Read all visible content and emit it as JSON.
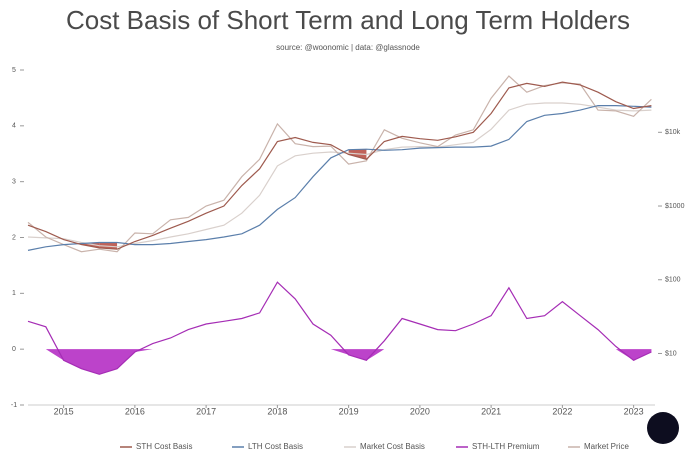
{
  "chart_data": {
    "type": "line",
    "title": "Cost Basis of Short Term and Long Term Holders",
    "subtitle": "source: @woonomic | data: @glassnode",
    "x": [
      2014.5,
      2014.75,
      2015.0,
      2015.25,
      2015.5,
      2015.75,
      2016.0,
      2016.25,
      2016.5,
      2016.75,
      2017.0,
      2017.25,
      2017.5,
      2017.75,
      2018.0,
      2018.25,
      2018.5,
      2018.75,
      2019.0,
      2019.25,
      2019.5,
      2019.75,
      2020.0,
      2020.25,
      2020.5,
      2020.75,
      2021.0,
      2021.25,
      2021.5,
      2021.75,
      2022.0,
      2022.25,
      2022.5,
      2022.75,
      2023.0,
      2023.25
    ],
    "xlim": [
      2014.5,
      2023.3
    ],
    "xticks": [
      2015,
      2016,
      2017,
      2018,
      2019,
      2020,
      2021,
      2022,
      2023
    ],
    "ylim": [
      -1,
      5
    ],
    "yticks": [
      5,
      4,
      3,
      2,
      1,
      0,
      -1
    ],
    "y2lim": [
      2,
      70000
    ],
    "y2log": true,
    "y2ticks": [
      {
        "value": 10000,
        "label": "$10k"
      },
      {
        "value": 1000,
        "label": "$1000"
      },
      {
        "value": 100,
        "label": "$100"
      },
      {
        "value": 10,
        "label": "$10"
      }
    ],
    "grid": false,
    "legend": "bottom",
    "underwater_fill": "#b5473c",
    "premium_fill": "#b52fc4",
    "series": [
      {
        "name": "STH Cost Basis",
        "color": "#9e5a4e",
        "axis": "y2",
        "values": [
          550,
          450,
          350,
          300,
          270,
          260,
          330,
          400,
          500,
          620,
          800,
          1000,
          1900,
          3200,
          7500,
          8500,
          7300,
          6800,
          5000,
          4300,
          7500,
          8800,
          8200,
          7800,
          8700,
          10000,
          18000,
          40000,
          46000,
          42000,
          48000,
          44000,
          35000,
          26000,
          21000,
          23000
        ]
      },
      {
        "name": "LTH Cost Basis",
        "color": "#5b7fab",
        "axis": "y2",
        "values": [
          250,
          280,
          300,
          310,
          320,
          320,
          300,
          300,
          310,
          330,
          350,
          380,
          420,
          550,
          900,
          1300,
          2500,
          4500,
          5800,
          5900,
          5700,
          5800,
          6100,
          6200,
          6300,
          6300,
          6500,
          8000,
          14000,
          17000,
          18000,
          20000,
          23000,
          23000,
          22500,
          22000
        ]
      },
      {
        "name": "Market Cost Basis",
        "color": "#d9d0cc",
        "axis": "y2",
        "values": [
          380,
          370,
          360,
          320,
          290,
          280,
          310,
          340,
          380,
          420,
          480,
          550,
          800,
          1400,
          3500,
          4800,
          5200,
          5400,
          5200,
          5000,
          5800,
          6300,
          6400,
          6300,
          6800,
          7300,
          11000,
          20000,
          24000,
          25000,
          25000,
          24000,
          22000,
          20000,
          19500,
          20000
        ]
      },
      {
        "name": "STH-LTH Premium",
        "color": "#a52db5",
        "axis": "y",
        "values": [
          0.5,
          0.4,
          -0.2,
          -0.35,
          -0.45,
          -0.35,
          -0.05,
          0.1,
          0.2,
          0.35,
          0.45,
          0.5,
          0.55,
          0.65,
          1.2,
          0.9,
          0.45,
          0.25,
          -0.1,
          -0.2,
          0.15,
          0.55,
          0.45,
          0.35,
          0.33,
          0.45,
          0.6,
          1.1,
          0.55,
          0.6,
          0.85,
          0.6,
          0.35,
          0.05,
          -0.2,
          -0.05
        ]
      },
      {
        "name": "Market Price",
        "color": "#c9b3ab",
        "axis": "y2",
        "values": [
          600,
          380,
          300,
          240,
          260,
          240,
          430,
          420,
          650,
          700,
          1000,
          1200,
          2500,
          4300,
          13000,
          7000,
          6400,
          6500,
          3700,
          4100,
          10800,
          8300,
          7200,
          6400,
          9200,
          10800,
          29000,
          58000,
          35000,
          43000,
          47000,
          45000,
          20000,
          19500,
          16500,
          28000
        ]
      }
    ]
  }
}
